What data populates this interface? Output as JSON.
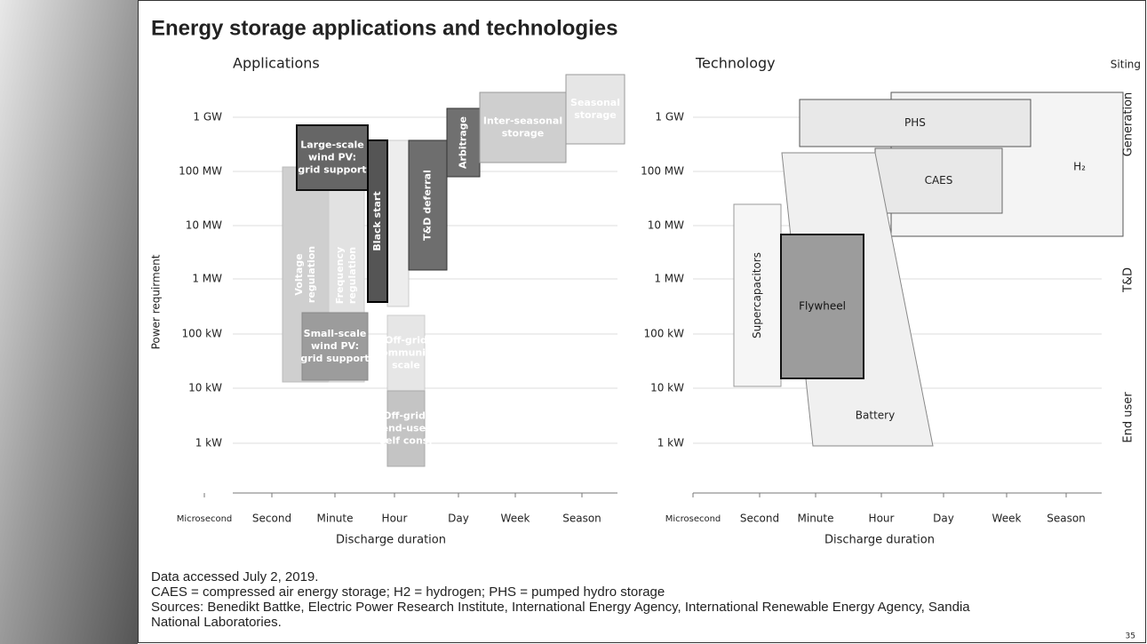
{
  "title": "Energy storage applications and technologies",
  "applications": {
    "heading": "Applications",
    "y_title": "Power requirment",
    "x_title": "Discharge duration",
    "y_labels": [
      "1 GW",
      "100 MW",
      "10 MW",
      "1 MW",
      "100 kW",
      "10 kW",
      "1 kW"
    ],
    "x_labels": [
      "Microsecond",
      "Second",
      "Minute",
      "Hour",
      "Day",
      "Week",
      "Season"
    ],
    "boxes": [
      {
        "lines": [
          "Voltage",
          "regulation"
        ]
      },
      {
        "lines": [
          "Frequency",
          "regulation"
        ]
      },
      {
        "lines": [
          "Large-scale",
          "wind PV:",
          "grid support"
        ]
      },
      {
        "lines": [
          "Black start"
        ]
      },
      {
        "lines": [
          "Small-scale",
          "wind PV:",
          "grid support"
        ]
      },
      {
        "lines": [
          "Off-grid",
          "community",
          "scale"
        ]
      },
      {
        "lines": [
          "Off-grid/",
          "end-user",
          "self cons."
        ]
      },
      {
        "lines": [
          "T&D deferral"
        ]
      },
      {
        "lines": [
          "Arbitrage"
        ]
      },
      {
        "lines": [
          "Inter-seasonal",
          "storage"
        ]
      },
      {
        "lines": [
          "Seasonal",
          "storage"
        ]
      }
    ]
  },
  "technology": {
    "heading": "Technology",
    "x_title": "Discharge duration",
    "y_labels": [
      "1 GW",
      "100 MW",
      "10 MW",
      "1 MW",
      "100 kW",
      "10 kW",
      "1 kW"
    ],
    "x_labels": [
      "Microsecond",
      "Second",
      "Minute",
      "Hour",
      "Day",
      "Week",
      "Season"
    ],
    "boxes": [
      {
        "lines": [
          "H₂"
        ]
      },
      {
        "lines": [
          "PHS"
        ]
      },
      {
        "lines": [
          "CAES"
        ]
      },
      {
        "lines": [
          "Battery"
        ]
      },
      {
        "lines": [
          "Supercapacitors"
        ]
      },
      {
        "lines": [
          "Flywheel"
        ]
      }
    ],
    "siting": {
      "heading": "Siting",
      "levels": [
        "Generation",
        "T&D",
        "End user"
      ]
    }
  },
  "notes": [
    "Data accessed July 2, 2019.",
    "CAES = compressed air energy storage; H2 = hydrogen; PHS = pumped hydro storage",
    "Sources: Benedikt Battke, Electric Power Research Institute, International Energy Agency, International Renewable Energy Agency, Sandia",
    "National Laboratories."
  ],
  "page_number": "35"
}
